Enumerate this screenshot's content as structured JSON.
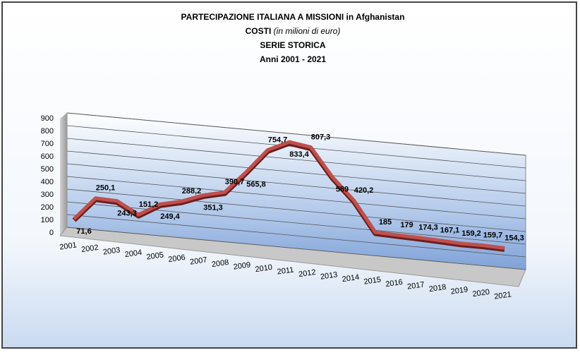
{
  "chart_data": {
    "type": "line",
    "title": "PARTECIPAZIONE ITALIANA A MISSIONI in Afghanistan",
    "subtitle": [
      "COSTI",
      "(in milioni di euro)"
    ],
    "subtitle_lines": [
      "SERIE STORICA",
      "Anni 2001 - 2021"
    ],
    "categories": [
      "2001",
      "2002",
      "2003",
      "2004",
      "2005",
      "2006",
      "2007",
      "2008",
      "2009",
      "2010",
      "2011",
      "2012",
      "2013",
      "2014",
      "2015",
      "2016",
      "2017",
      "2018",
      "2019",
      "2020",
      "2021"
    ],
    "values": [
      71.6,
      250.1,
      243.3,
      151.2,
      249.4,
      288.2,
      351.3,
      390.7,
      565.8,
      754.7,
      833.4,
      807.3,
      589,
      420.2,
      185,
      179,
      174.3,
      167.1,
      159.2,
      159.7,
      154.3
    ],
    "value_labels": [
      "71,6",
      "250,1",
      "243,3",
      "151,2",
      "249,4",
      "288,2",
      "351,3",
      "390,7",
      "565,8",
      "754,7",
      "833,4",
      "807,3",
      "589",
      "420,2",
      "185",
      "179",
      "174,3",
      "167,1",
      "159,2",
      "159,7",
      "154,3"
    ],
    "color": "#c0504d",
    "ylim": [
      0,
      900
    ],
    "yticks": [
      0,
      100,
      200,
      300,
      400,
      500,
      600,
      700,
      800,
      900
    ],
    "grid": true
  }
}
